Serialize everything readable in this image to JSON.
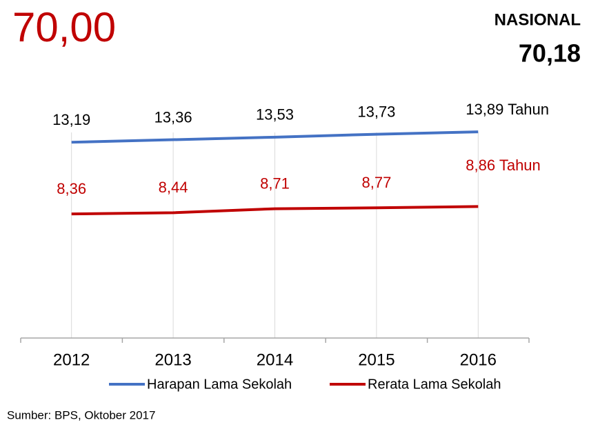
{
  "headline": "70,00",
  "national": {
    "label": "NASIONAL",
    "value": "70,18"
  },
  "chart_data": {
    "type": "line",
    "categories": [
      "2012",
      "2013",
      "2014",
      "2015",
      "2016"
    ],
    "series": [
      {
        "name": "Harapan Lama Sekolah",
        "color": "#4472c4",
        "values": [
          13.19,
          13.36,
          13.53,
          13.73,
          13.89
        ],
        "value_labels": [
          "13,19",
          "13,36",
          "13,53",
          "13,73",
          "13,89 Tahun"
        ]
      },
      {
        "name": "Rerata Lama Sekolah",
        "color": "#c00000",
        "values": [
          8.36,
          8.44,
          8.71,
          8.77,
          8.86
        ],
        "value_labels": [
          "8,36",
          "8,44",
          "8,71",
          "8,77",
          "8,86 Tahun"
        ]
      }
    ],
    "ylim": [
      0,
      14.5
    ],
    "legend": "bottom"
  },
  "source": "Sumber: BPS, Oktober 2017"
}
